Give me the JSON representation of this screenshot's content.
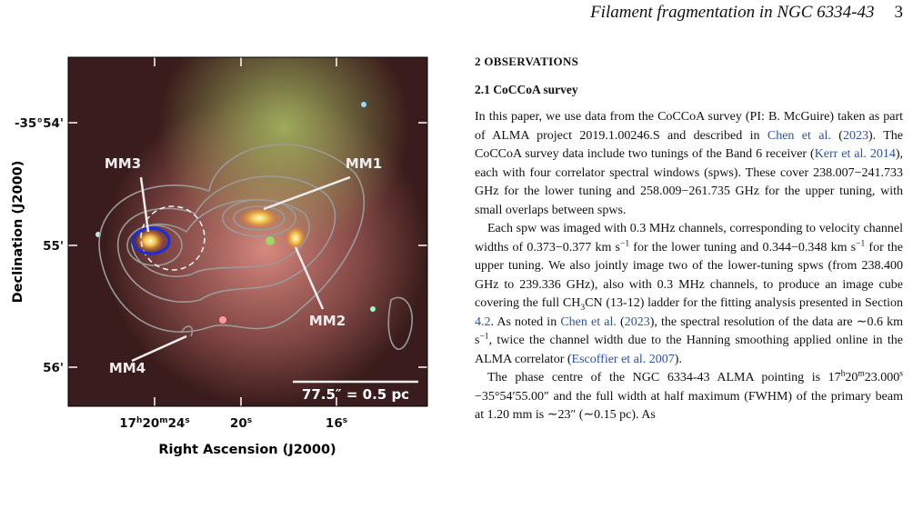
{
  "header": {
    "running_title": "Filament fragmentation in NGC 6334-43",
    "page_number": "3"
  },
  "figure": {
    "panel_labels": [
      "MM1",
      "MM2",
      "MM3",
      "MM4"
    ],
    "scale_bar": "77.5″ = 0.5 pc",
    "y_ticks": [
      "-35°54'",
      "55'",
      "56'"
    ],
    "x_ticks": [
      [
        "17",
        {
          "text": "h",
          "style": "sup"
        },
        "20",
        {
          "text": "m",
          "style": "sup"
        },
        "24",
        {
          "text": "s",
          "style": "sup"
        }
      ],
      [
        "20",
        {
          "text": "s",
          "style": "sup"
        }
      ],
      [
        "16",
        {
          "text": "s",
          "style": "sup"
        }
      ]
    ],
    "x_axis_title": "Right Ascension (J2000)",
    "y_axis_title": "Declination (J2000)"
  },
  "section": {
    "title": "2 OBSERVATIONS",
    "subsection": "2.1 CoCCoA survey",
    "paragraphs": [
      [
        "In this paper, we use data from the CoCCoA survey (PI: B. McGuire) taken as part of ALMA project 2019.1.00246.S and described in ",
        {
          "text": "Chen et al.",
          "style": "link"
        },
        " (",
        {
          "text": "2023",
          "style": "link"
        },
        "). The CoCCoA survey data include two tunings of the Band 6 receiver (",
        {
          "text": "Kerr et al. 2014",
          "style": "link"
        },
        "), each with four correlator spectral windows (spws). These cover 238.007−241.733 GHz for the lower tuning and 258.009−261.735 GHz for the upper tuning, with small overlaps between spws."
      ],
      [
        "Each spw was imaged with 0.3 MHz channels, corresponding to velocity channel widths of 0.373−0.377 km s",
        {
          "text": "−1",
          "style": "sup"
        },
        " for the lower tuning and 0.344−0.348 km s",
        {
          "text": "−1",
          "style": "sup"
        },
        " for the upper tuning. We also jointly image two of the lower-tuning spws (from 238.400 GHz to 239.336 GHz), also with 0.3 MHz channels, to produce an image cube covering the full CH",
        {
          "text": "3",
          "style": "sub"
        },
        "CN (13-12) ladder for the fitting analysis presented in Section ",
        {
          "text": "4.2",
          "style": "link"
        },
        ". As noted in ",
        {
          "text": "Chen et al.",
          "style": "link"
        },
        " (",
        {
          "text": "2023",
          "style": "link"
        },
        "), the spectral resolution of the data are ∼0.6 km s",
        {
          "text": "−1",
          "style": "sup"
        },
        ", twice the channel width due to the Hanning smoothing applied online in the ALMA correlator (",
        {
          "text": "Escoffier et al. 2007",
          "style": "link"
        },
        ")."
      ],
      [
        "The phase centre of the NGC 6334-43 ALMA pointing is 17",
        {
          "text": "h",
          "style": "sup"
        },
        "20",
        {
          "text": "m",
          "style": "sup"
        },
        "23.000",
        {
          "text": "s",
          "style": "sup"
        },
        " −35°54′55.00″ and the full width at half maximum (FWHM) of the primary beam at 1.20 mm is ∼23″ (∼0.15 pc). As"
      ]
    ]
  }
}
